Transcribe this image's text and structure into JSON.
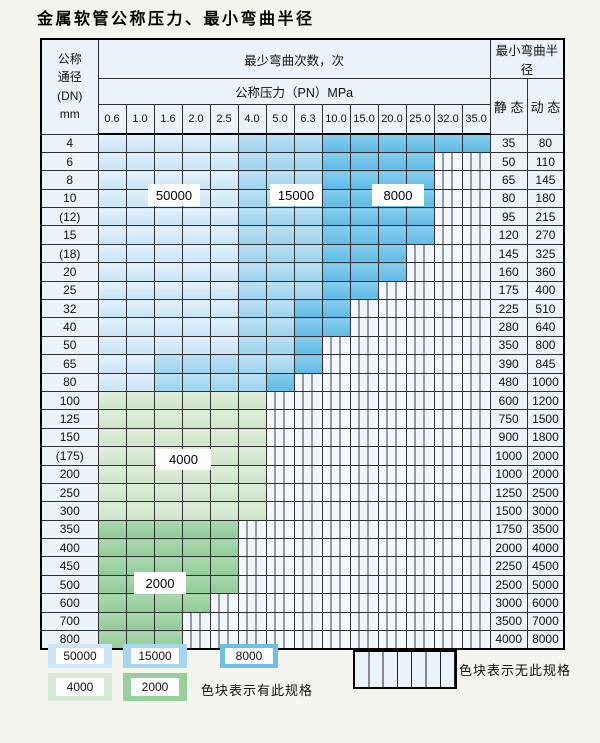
{
  "title": "金属软管公称压力、最小弯曲半径",
  "header": {
    "dn_lines": [
      "公称",
      "通径",
      "(DN)",
      "mm"
    ],
    "cycles": "最少弯曲次数，次",
    "pressure": "公称压力（PN）MPa",
    "radius": "最小弯曲半径",
    "static": "静 态",
    "dynamic": "动 态",
    "pressures": [
      "0.6",
      "1.0",
      "1.6",
      "2.0",
      "2.5",
      "4.0",
      "5.0",
      "6.3",
      "10.0",
      "15.0",
      "20.0",
      "25.0",
      "32.0",
      "35.0"
    ]
  },
  "overlays": [
    {
      "label": "50000"
    },
    {
      "label": "15000"
    },
    {
      "label": "8000"
    },
    {
      "label": "4000"
    },
    {
      "label": "2000"
    }
  ],
  "legend": {
    "swatches": [
      {
        "label": "50000",
        "color": "#cce6f7"
      },
      {
        "label": "15000",
        "color": "#a5d5f0"
      },
      {
        "label": "8000",
        "color": "#6cc0e8"
      },
      {
        "label": "4000",
        "color": "#d6e9d1"
      },
      {
        "label": "2000",
        "color": "#97cf9d"
      }
    ],
    "has_spec": "色块表示有此规格",
    "no_spec": "色块表示无此规格"
  },
  "colors": {
    "cycles_50000": "#cce6f7",
    "cycles_15000": "#a5d5f0",
    "cycles_8000": "#6cc0e8",
    "cycles_4000": "#d6e9d1",
    "cycles_2000": "#97cf9d",
    "no_spec_bg": "#f2f7fd",
    "label_cell_bg": "#ebf2fa",
    "page_bg": "#f3f5ee",
    "grid": "#2f2f2f"
  },
  "chart_data": {
    "type": "table",
    "title": "金属软管公称压力、最小弯曲半径",
    "pressure_columns_MPa": [
      0.6,
      1.0,
      1.6,
      2.0,
      2.5,
      4.0,
      5.0,
      6.3,
      10.0,
      15.0,
      20.0,
      25.0,
      32.0,
      35.0
    ],
    "cell_codes": {
      "A": 50000,
      "B": 15000,
      "C": 8000,
      "D": 4000,
      "E": 2000,
      "X": "无此规格"
    },
    "radius_columns": [
      "静态",
      "动态"
    ],
    "rows": [
      {
        "dn": "4",
        "cells": "AAAAABBBCCCCCC",
        "static": "35",
        "dynamic": "80"
      },
      {
        "dn": "6",
        "cells": "AAAAABBBCCCCXX",
        "static": "50",
        "dynamic": "110"
      },
      {
        "dn": "8",
        "cells": "AAAAABBBCCCCXX",
        "static": "65",
        "dynamic": "145"
      },
      {
        "dn": "10",
        "cells": "AAAAABBBCCCCXX",
        "static": "80",
        "dynamic": "180"
      },
      {
        "dn": "(12)",
        "cells": "AAAAABBBCCCCXX",
        "static": "95",
        "dynamic": "215"
      },
      {
        "dn": "15",
        "cells": "AAAAABBBCCCCXX",
        "static": "120",
        "dynamic": "270"
      },
      {
        "dn": "(18)",
        "cells": "AAAAABBBCCCXXX",
        "static": "145",
        "dynamic": "325"
      },
      {
        "dn": "20",
        "cells": "AAAAABBBCCCXXX",
        "static": "160",
        "dynamic": "360"
      },
      {
        "dn": "25",
        "cells": "AAAAABBBCCXXXX",
        "static": "175",
        "dynamic": "400"
      },
      {
        "dn": "32",
        "cells": "AAAAABBCCXXXXX",
        "static": "225",
        "dynamic": "510"
      },
      {
        "dn": "40",
        "cells": "AAAAABBCCXXXXX",
        "static": "280",
        "dynamic": "640"
      },
      {
        "dn": "50",
        "cells": "AAAAABBCXXXXXX",
        "static": "350",
        "dynamic": "800"
      },
      {
        "dn": "65",
        "cells": "AABBBBBCXXXXXX",
        "static": "390",
        "dynamic": "845"
      },
      {
        "dn": "80",
        "cells": "AABBBBCXXXXXXX",
        "static": "480",
        "dynamic": "1000"
      },
      {
        "dn": "100",
        "cells": "DDDDDDXXXXXXXX",
        "static": "600",
        "dynamic": "1200"
      },
      {
        "dn": "125",
        "cells": "DDDDDDXXXXXXXX",
        "static": "750",
        "dynamic": "1500"
      },
      {
        "dn": "150",
        "cells": "DDDDDDXXXXXXXX",
        "static": "900",
        "dynamic": "1800"
      },
      {
        "dn": "(175)",
        "cells": "DDDDDDXXXXXXXX",
        "static": "1000",
        "dynamic": "2000"
      },
      {
        "dn": "200",
        "cells": "DDDDDDXXXXXXXX",
        "static": "1000",
        "dynamic": "2000"
      },
      {
        "dn": "250",
        "cells": "DDDDDDXXXXXXXX",
        "static": "1250",
        "dynamic": "2500"
      },
      {
        "dn": "300",
        "cells": "DDDDDDXXXXXXXX",
        "static": "1500",
        "dynamic": "3000"
      },
      {
        "dn": "350",
        "cells": "EEEEEXXXXXXXXX",
        "static": "1750",
        "dynamic": "3500"
      },
      {
        "dn": "400",
        "cells": "EEEEEXXXXXXXXX",
        "static": "2000",
        "dynamic": "4000"
      },
      {
        "dn": "450",
        "cells": "EEEEEXXXXXXXXX",
        "static": "2250",
        "dynamic": "4500"
      },
      {
        "dn": "500",
        "cells": "EEEEEXXXXXXXXX",
        "static": "2500",
        "dynamic": "5000"
      },
      {
        "dn": "600",
        "cells": "EEEEXXXXXXXXXX",
        "static": "3000",
        "dynamic": "6000"
      },
      {
        "dn": "700",
        "cells": "EEEXXXXXXXXXXX",
        "static": "3500",
        "dynamic": "7000"
      },
      {
        "dn": "800",
        "cells": "EEEXXXXXXXXXXX",
        "static": "4000",
        "dynamic": "8000"
      }
    ]
  }
}
